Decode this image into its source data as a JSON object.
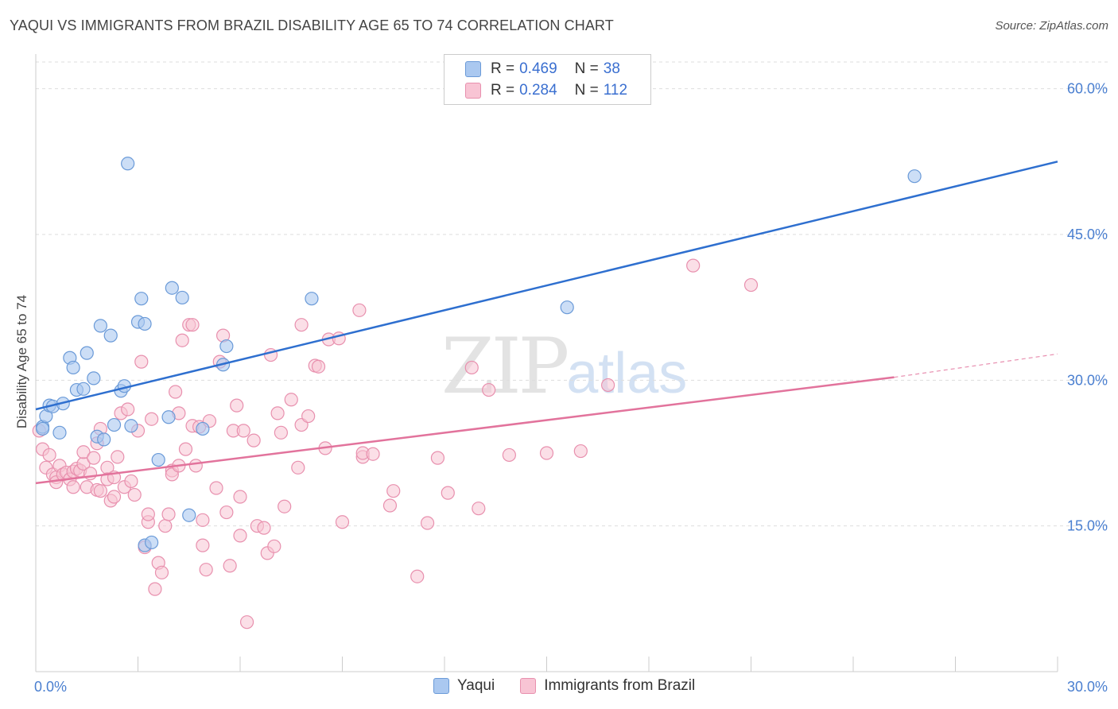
{
  "title": "YAQUI VS IMMIGRANTS FROM BRAZIL DISABILITY AGE 65 TO 74 CORRELATION CHART",
  "source": "Source: ZipAtlas.com",
  "watermark": {
    "zip": "ZIP",
    "atlas": "atlas"
  },
  "legend": {
    "rows": [
      {
        "r_label": "R = ",
        "r_value": "0.469",
        "n_label": "N = ",
        "n_value": "38"
      },
      {
        "r_label": "R = ",
        "r_value": "0.284",
        "n_label": "N = ",
        "n_value": "112"
      }
    ]
  },
  "bottom_legend": [
    "Yaqui",
    "Immigrants from Brazil"
  ],
  "colors": {
    "yaqui_fill": "#aac8f0",
    "yaqui_stroke": "#6a9ad8",
    "yaqui_line": "#2e6fcf",
    "brazil_fill": "#f8c4d4",
    "brazil_stroke": "#e890ae",
    "brazil_line": "#e2739c",
    "grid": "#dddddd",
    "axis": "#cccccc",
    "tick_text": "#4a7fd0"
  },
  "chart_data": {
    "type": "scatter",
    "title": "YAQUI VS IMMIGRANTS FROM BRAZIL DISABILITY AGE 65 TO 74 CORRELATION CHART",
    "xlabel": "",
    "ylabel": "Disability Age 65 to 74",
    "xlim": [
      0,
      30
    ],
    "ylim": [
      0,
      63
    ],
    "x_tick_labels": [
      "0.0%",
      "30.0%"
    ],
    "y_ticks": [
      15,
      30,
      45,
      60
    ],
    "y_tick_labels": [
      "15.0%",
      "30.0%",
      "45.0%",
      "60.0%"
    ],
    "grid": true,
    "legend_position": "top-center",
    "series": [
      {
        "name": "Yaqui",
        "r": 0.469,
        "n": 38,
        "trend": {
          "x": [
            0,
            30
          ],
          "y": [
            27.0,
            52.5
          ]
        },
        "points": [
          [
            0.2,
            25.2
          ],
          [
            0.2,
            25.0
          ],
          [
            0.3,
            26.3
          ],
          [
            0.4,
            27.4
          ],
          [
            0.5,
            27.3
          ],
          [
            0.7,
            24.6
          ],
          [
            0.8,
            27.6
          ],
          [
            1.0,
            32.3
          ],
          [
            1.1,
            31.3
          ],
          [
            1.2,
            29.0
          ],
          [
            1.4,
            29.1
          ],
          [
            1.5,
            32.8
          ],
          [
            1.7,
            30.2
          ],
          [
            1.8,
            24.2
          ],
          [
            1.9,
            35.6
          ],
          [
            2.0,
            23.9
          ],
          [
            2.2,
            34.6
          ],
          [
            2.3,
            25.4
          ],
          [
            2.5,
            28.9
          ],
          [
            2.6,
            29.4
          ],
          [
            2.7,
            52.3
          ],
          [
            2.8,
            25.3
          ],
          [
            3.0,
            36.0
          ],
          [
            3.1,
            38.4
          ],
          [
            3.2,
            35.8
          ],
          [
            3.2,
            13.0
          ],
          [
            3.4,
            13.3
          ],
          [
            3.6,
            21.8
          ],
          [
            3.9,
            26.2
          ],
          [
            4.0,
            39.5
          ],
          [
            4.3,
            38.5
          ],
          [
            4.5,
            16.1
          ],
          [
            4.9,
            25.0
          ],
          [
            5.6,
            33.5
          ],
          [
            5.5,
            31.6
          ],
          [
            8.1,
            38.4
          ],
          [
            15.6,
            37.5
          ],
          [
            25.8,
            51.0
          ]
        ]
      },
      {
        "name": "Immigrants from Brazil",
        "r": 0.284,
        "n": 112,
        "trend": {
          "x": [
            0,
            25.2
          ],
          "y": [
            19.4,
            30.3
          ]
        },
        "trend_dashed": {
          "x": [
            25.2,
            30
          ],
          "y": [
            30.3,
            32.7
          ]
        },
        "points": [
          [
            0.1,
            24.8
          ],
          [
            0.2,
            22.9
          ],
          [
            0.3,
            21.0
          ],
          [
            0.4,
            22.3
          ],
          [
            0.5,
            20.3
          ],
          [
            0.6,
            20.0
          ],
          [
            0.6,
            19.5
          ],
          [
            0.7,
            21.2
          ],
          [
            0.8,
            20.3
          ],
          [
            0.9,
            20.5
          ],
          [
            1.0,
            19.8
          ],
          [
            1.1,
            19.0
          ],
          [
            1.1,
            20.6
          ],
          [
            1.2,
            20.9
          ],
          [
            1.3,
            20.7
          ],
          [
            1.4,
            21.4
          ],
          [
            1.4,
            22.6
          ],
          [
            1.5,
            19.0
          ],
          [
            1.6,
            20.4
          ],
          [
            1.7,
            22.0
          ],
          [
            1.8,
            18.7
          ],
          [
            1.8,
            23.5
          ],
          [
            1.9,
            18.6
          ],
          [
            1.9,
            25.0
          ],
          [
            2.1,
            21.0
          ],
          [
            2.1,
            19.8
          ],
          [
            2.2,
            17.6
          ],
          [
            2.3,
            20.0
          ],
          [
            2.3,
            18.0
          ],
          [
            2.4,
            22.1
          ],
          [
            2.5,
            26.6
          ],
          [
            2.6,
            19.0
          ],
          [
            2.7,
            27.0
          ],
          [
            2.8,
            19.6
          ],
          [
            2.9,
            18.2
          ],
          [
            3.0,
            24.8
          ],
          [
            3.1,
            31.9
          ],
          [
            3.2,
            12.8
          ],
          [
            3.3,
            15.4
          ],
          [
            3.3,
            16.2
          ],
          [
            3.4,
            26.0
          ],
          [
            3.5,
            8.5
          ],
          [
            3.6,
            11.2
          ],
          [
            3.7,
            10.2
          ],
          [
            3.8,
            15.0
          ],
          [
            3.9,
            16.2
          ],
          [
            4.0,
            20.7
          ],
          [
            4.0,
            20.3
          ],
          [
            4.1,
            28.8
          ],
          [
            4.2,
            21.2
          ],
          [
            4.2,
            26.6
          ],
          [
            4.3,
            34.1
          ],
          [
            4.4,
            22.9
          ],
          [
            4.5,
            35.7
          ],
          [
            4.6,
            25.3
          ],
          [
            4.7,
            21.2
          ],
          [
            4.8,
            25.2
          ],
          [
            4.9,
            15.6
          ],
          [
            4.9,
            13.0
          ],
          [
            5.0,
            10.5
          ],
          [
            5.1,
            25.8
          ],
          [
            5.3,
            18.9
          ],
          [
            5.4,
            31.9
          ],
          [
            5.5,
            34.6
          ],
          [
            5.6,
            16.4
          ],
          [
            5.7,
            10.9
          ],
          [
            5.8,
            24.8
          ],
          [
            5.9,
            27.4
          ],
          [
            6.0,
            18.0
          ],
          [
            6.0,
            14.0
          ],
          [
            6.1,
            24.8
          ],
          [
            6.2,
            5.1
          ],
          [
            6.4,
            23.8
          ],
          [
            6.5,
            15.0
          ],
          [
            6.7,
            14.8
          ],
          [
            6.8,
            12.2
          ],
          [
            6.9,
            32.6
          ],
          [
            7.0,
            12.9
          ],
          [
            7.1,
            26.6
          ],
          [
            7.2,
            24.6
          ],
          [
            7.3,
            17.0
          ],
          [
            7.5,
            28.0
          ],
          [
            7.7,
            21.0
          ],
          [
            7.8,
            25.4
          ],
          [
            7.8,
            35.7
          ],
          [
            8.0,
            26.3
          ],
          [
            8.2,
            31.5
          ],
          [
            8.3,
            31.4
          ],
          [
            8.5,
            23.0
          ],
          [
            8.6,
            34.2
          ],
          [
            9.0,
            15.4
          ],
          [
            9.5,
            37.2
          ],
          [
            9.6,
            22.1
          ],
          [
            9.6,
            22.5
          ],
          [
            9.9,
            22.4
          ],
          [
            10.4,
            17.1
          ],
          [
            10.5,
            18.6
          ],
          [
            11.2,
            9.8
          ],
          [
            11.5,
            15.3
          ],
          [
            11.8,
            22.0
          ],
          [
            12.1,
            18.4
          ],
          [
            12.8,
            31.3
          ],
          [
            13.0,
            16.8
          ],
          [
            13.3,
            29.0
          ],
          [
            13.9,
            22.3
          ],
          [
            15.0,
            22.5
          ],
          [
            16.0,
            22.7
          ],
          [
            16.8,
            29.5
          ],
          [
            19.3,
            41.8
          ],
          [
            21.0,
            39.8
          ],
          [
            8.9,
            34.3
          ],
          [
            4.6,
            35.7
          ]
        ]
      }
    ]
  }
}
